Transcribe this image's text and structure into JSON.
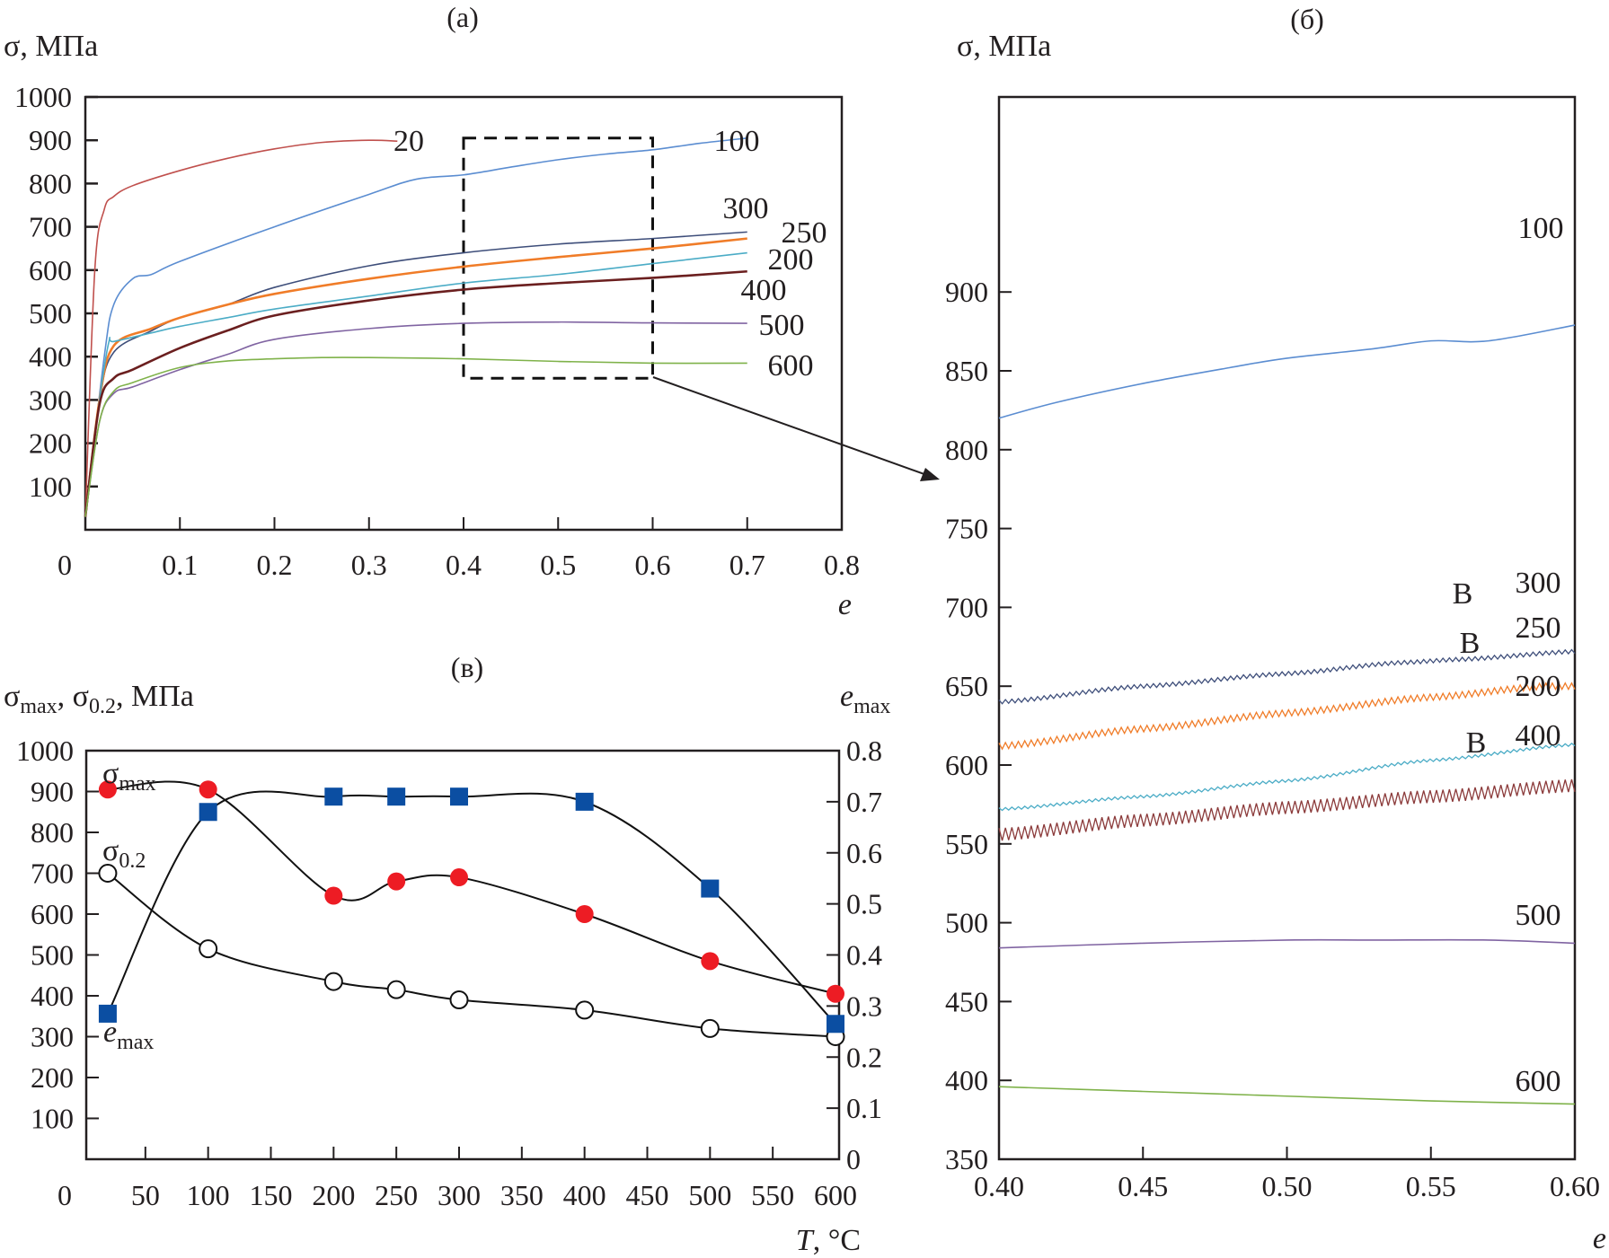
{
  "chart_data": [
    {
      "id": "a",
      "type": "line",
      "panel_label": "(a)",
      "title": "",
      "xlabel": "e",
      "ylabel": "σ, МПа",
      "xlim": [
        0,
        0.8
      ],
      "ylim": [
        0,
        1000
      ],
      "xticks": [
        "0",
        "0.1",
        "0.2",
        "0.3",
        "0.4",
        "0.5",
        "0.6",
        "0.7",
        "0.8"
      ],
      "yticks": [
        "100",
        "200",
        "300",
        "400",
        "500",
        "600",
        "700",
        "800",
        "900",
        "1000"
      ],
      "grid": false,
      "zoom_box": {
        "x": [
          0.4,
          0.6
        ],
        "y": [
          350,
          905
        ]
      },
      "series": [
        {
          "name": "20",
          "color": "#c0504d",
          "x": [
            0,
            0.01,
            0.02,
            0.03,
            0.05,
            0.1,
            0.15,
            0.2,
            0.25,
            0.3,
            0.33
          ],
          "y": [
            30,
            600,
            740,
            770,
            795,
            830,
            858,
            880,
            895,
            900,
            898
          ]
        },
        {
          "name": "100",
          "color": "#5b8dd1",
          "x": [
            0,
            0.02,
            0.03,
            0.05,
            0.07,
            0.1,
            0.2,
            0.3,
            0.35,
            0.4,
            0.45,
            0.5,
            0.55,
            0.6,
            0.65,
            0.7
          ],
          "y": [
            30,
            400,
            520,
            580,
            590,
            620,
            700,
            775,
            810,
            820,
            838,
            855,
            868,
            878,
            893,
            905
          ]
        },
        {
          "name": "300",
          "color": "#3e4e7a",
          "x": [
            0,
            0.015,
            0.03,
            0.07,
            0.1,
            0.15,
            0.2,
            0.3,
            0.4,
            0.5,
            0.6,
            0.7
          ],
          "y": [
            30,
            300,
            410,
            460,
            490,
            520,
            560,
            610,
            640,
            660,
            673,
            688
          ]
        },
        {
          "name": "250",
          "color": "#f07c28",
          "x": [
            0,
            0.015,
            0.03,
            0.07,
            0.1,
            0.15,
            0.2,
            0.3,
            0.4,
            0.5,
            0.6,
            0.7
          ],
          "y": [
            30,
            300,
            425,
            465,
            490,
            520,
            545,
            580,
            608,
            630,
            650,
            673
          ]
        },
        {
          "name": "200",
          "color": "#4bacc6",
          "x": [
            0,
            0.015,
            0.025,
            0.03,
            0.07,
            0.1,
            0.15,
            0.2,
            0.3,
            0.4,
            0.5,
            0.6,
            0.7
          ],
          "y": [
            30,
            300,
            435,
            435,
            455,
            470,
            490,
            510,
            540,
            570,
            590,
            615,
            640
          ]
        },
        {
          "name": "400",
          "color": "#6b1f1f",
          "x": [
            0,
            0.015,
            0.03,
            0.05,
            0.1,
            0.15,
            0.2,
            0.3,
            0.4,
            0.5,
            0.6,
            0.7
          ],
          "y": [
            30,
            290,
            350,
            370,
            420,
            460,
            495,
            530,
            555,
            570,
            582,
            597
          ]
        },
        {
          "name": "500",
          "color": "#8064a2",
          "x": [
            0,
            0.015,
            0.03,
            0.05,
            0.1,
            0.15,
            0.2,
            0.3,
            0.4,
            0.5,
            0.6,
            0.7
          ],
          "y": [
            30,
            250,
            315,
            330,
            370,
            405,
            440,
            465,
            477,
            480,
            478,
            477
          ]
        },
        {
          "name": "600",
          "color": "#7fb24a",
          "x": [
            0,
            0.015,
            0.03,
            0.05,
            0.1,
            0.15,
            0.2,
            0.25,
            0.3,
            0.4,
            0.5,
            0.6,
            0.7
          ],
          "y": [
            30,
            250,
            320,
            340,
            375,
            390,
            395,
            398,
            398,
            395,
            389,
            385,
            385
          ]
        }
      ]
    },
    {
      "id": "b",
      "type": "line",
      "panel_label": "(б)",
      "title": "",
      "xlabel": "e",
      "ylabel": "σ, МПа",
      "xlim": [
        0.4,
        0.6
      ],
      "ylim": [
        350,
        950
      ],
      "xticks": [
        "0.40",
        "0.45",
        "0.50",
        "0.55",
        "0.60"
      ],
      "yticks": [
        "350",
        "400",
        "450",
        "500",
        "550",
        "600",
        "650",
        "700",
        "750",
        "800",
        "850",
        "900"
      ],
      "grid": false,
      "annotations": [
        "B",
        "B",
        "B"
      ],
      "series": [
        {
          "name": "100",
          "color": "#5b8dd1",
          "x": [
            0.4,
            0.42,
            0.45,
            0.48,
            0.5,
            0.53,
            0.55,
            0.57,
            0.6
          ],
          "y": [
            820,
            830,
            842,
            852,
            858,
            864,
            869,
            869,
            879
          ]
        },
        {
          "name": "300",
          "color": "#3e4e7a",
          "x": [
            0.4,
            0.45,
            0.5,
            0.54,
            0.56,
            0.6
          ],
          "y": [
            640,
            650,
            658,
            665,
            667,
            672
          ]
        },
        {
          "name": "250",
          "color": "#f07c28",
          "x": [
            0.4,
            0.45,
            0.5,
            0.55,
            0.59,
            0.6
          ],
          "y": [
            612,
            623,
            633,
            643,
            650,
            650
          ]
        },
        {
          "name": "200",
          "color": "#4bacc6",
          "x": [
            0.4,
            0.45,
            0.5,
            0.55,
            0.6
          ],
          "y": [
            572,
            580,
            590,
            603,
            613
          ]
        },
        {
          "name": "400",
          "color": "#8b3a3a",
          "x": [
            0.4,
            0.45,
            0.5,
            0.55,
            0.6
          ],
          "y": [
            556,
            565,
            573,
            580,
            587
          ]
        },
        {
          "name": "500",
          "color": "#8064a2",
          "x": [
            0.4,
            0.45,
            0.5,
            0.53,
            0.57,
            0.6
          ],
          "y": [
            484,
            487,
            489,
            489,
            489,
            487
          ]
        },
        {
          "name": "600",
          "color": "#7fb24a",
          "x": [
            0.4,
            0.45,
            0.5,
            0.55,
            0.6
          ],
          "y": [
            396,
            393,
            390,
            387,
            385
          ]
        }
      ],
      "curve_labels": [
        "100",
        "300",
        "250",
        "200",
        "400",
        "500",
        "600"
      ]
    },
    {
      "id": "v",
      "type": "line",
      "panel_label": "(в)",
      "title": "",
      "xlabel": "T, °C",
      "ylabel": "σmax, σ0.2, МПа",
      "ylabel_right": "emax",
      "xlim": [
        0,
        600
      ],
      "ylim": [
        0,
        1000
      ],
      "ylim_right": [
        0,
        0.8
      ],
      "xticks": [
        "0",
        "50",
        "100",
        "150",
        "200",
        "250",
        "300",
        "350",
        "400",
        "450",
        "500",
        "550",
        "600"
      ],
      "yticks": [
        "100",
        "200",
        "300",
        "400",
        "500",
        "600",
        "700",
        "800",
        "900",
        "1000"
      ],
      "yticks_right": [
        "0",
        "0.1",
        "0.2",
        "0.3",
        "0.4",
        "0.5",
        "0.6",
        "0.7",
        "0.8"
      ],
      "grid": false,
      "series": [
        {
          "name": "σmax",
          "axis": "left",
          "marker": "filled-circle",
          "color": "#ed1c24",
          "x": [
            20,
            100,
            200,
            250,
            300,
            400,
            500,
            600
          ],
          "y": [
            905,
            905,
            645,
            680,
            690,
            600,
            485,
            405
          ]
        },
        {
          "name": "σ0.2",
          "axis": "left",
          "marker": "open-circle",
          "color": "#ffffff",
          "x": [
            20,
            100,
            200,
            250,
            300,
            400,
            500,
            600
          ],
          "y": [
            700,
            515,
            435,
            415,
            390,
            365,
            320,
            300
          ]
        },
        {
          "name": "emax",
          "axis": "right",
          "marker": "square",
          "color": "#0b4ea2",
          "x": [
            20,
            100,
            200,
            250,
            300,
            400,
            500,
            600
          ],
          "y": [
            0.285,
            0.68,
            0.71,
            0.71,
            0.71,
            0.7,
            0.53,
            0.265
          ]
        }
      ]
    }
  ]
}
